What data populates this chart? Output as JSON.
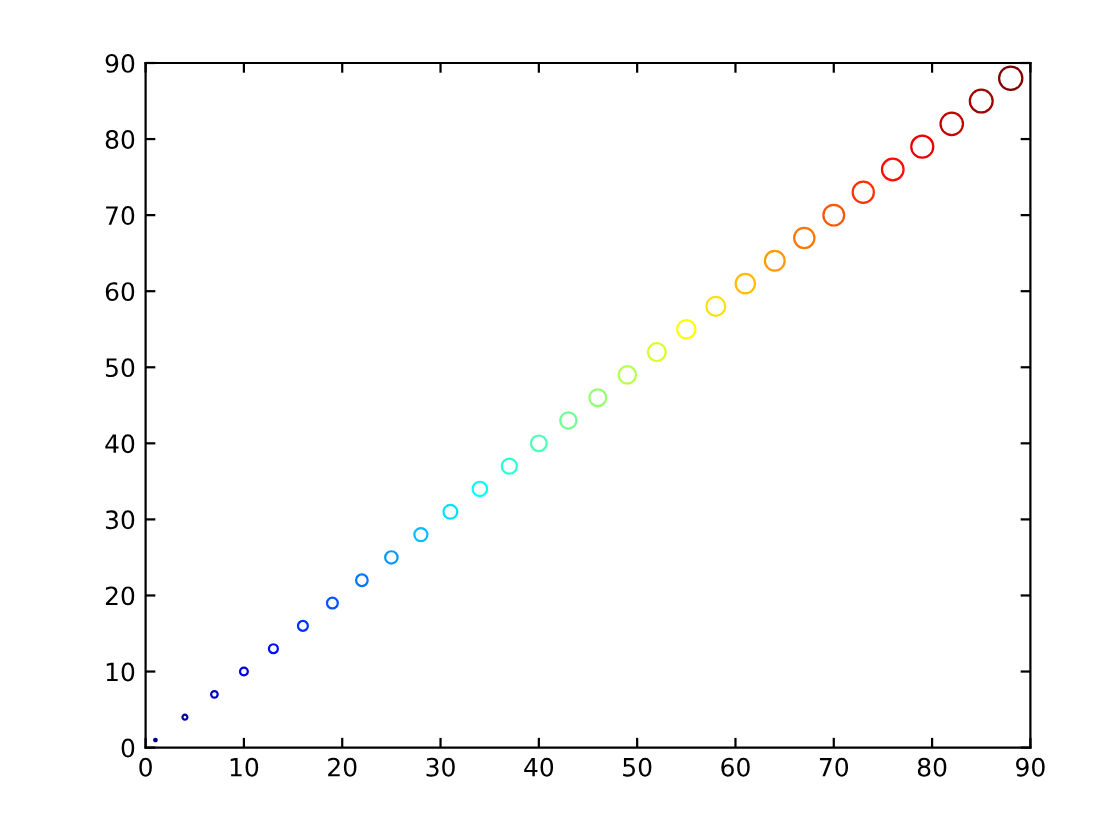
{
  "chart_data": {
    "type": "scatter",
    "marker": "circle",
    "grid": false,
    "x": [
      1,
      4,
      7,
      10,
      13,
      16,
      19,
      22,
      25,
      28,
      31,
      34,
      37,
      40,
      43,
      46,
      49,
      52,
      55,
      58,
      61,
      64,
      67,
      70,
      73,
      76,
      79,
      82,
      85,
      88
    ],
    "values": [
      1,
      4,
      7,
      10,
      13,
      16,
      19,
      22,
      25,
      28,
      31,
      34,
      37,
      40,
      43,
      46,
      49,
      52,
      55,
      58,
      61,
      64,
      67,
      70,
      73,
      76,
      79,
      82,
      85,
      88
    ],
    "sizes": [
      0.011,
      0.045,
      0.08,
      0.114,
      0.148,
      0.182,
      0.216,
      0.25,
      0.284,
      0.318,
      0.352,
      0.386,
      0.42,
      0.455,
      0.489,
      0.523,
      0.557,
      0.591,
      0.625,
      0.659,
      0.693,
      0.727,
      0.761,
      0.795,
      0.83,
      0.864,
      0.898,
      0.932,
      0.966,
      1
    ],
    "colors": [
      "#000080",
      "#0000a3",
      "#0000c6",
      "#0000e9",
      "#000dff",
      "#0030ff",
      "#0054ff",
      "#0077ff",
      "#009aff",
      "#00bdff",
      "#00e0ff",
      "#04fffb",
      "#28ffd7",
      "#4bffb4",
      "#6eff91",
      "#91ff6e",
      "#b4ff4b",
      "#d7ff28",
      "#fbff04",
      "#ffe000",
      "#ffbd00",
      "#ff9a00",
      "#ff7700",
      "#ff5400",
      "#ff3000",
      "#ff0d00",
      "#e90000",
      "#c60000",
      "#a30000",
      "#800000"
    ],
    "xlim": [
      0,
      90
    ],
    "xticks": [
      0,
      10,
      20,
      30,
      40,
      50,
      60,
      70,
      80,
      90
    ],
    "ylim": [
      0,
      90
    ],
    "yticks": [
      0,
      10,
      20,
      30,
      40,
      50,
      60,
      70,
      80,
      90
    ]
  }
}
